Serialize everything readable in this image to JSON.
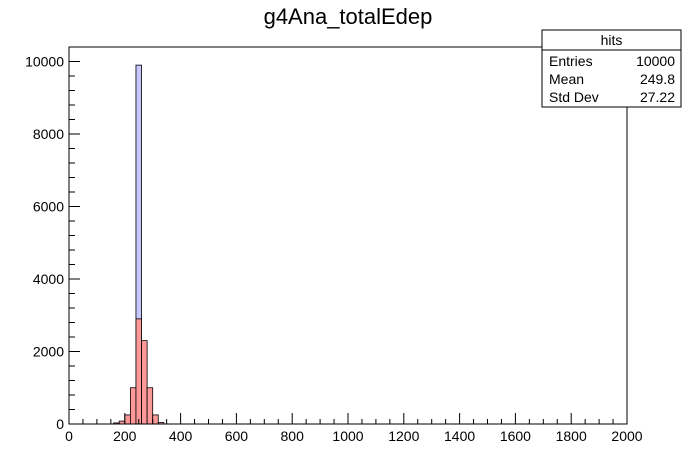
{
  "chart_data": {
    "type": "bar",
    "title": "g4Ana_totalEdep",
    "xlabel": "",
    "ylabel": "",
    "xlim": [
      0,
      2000
    ],
    "ylim": [
      0,
      10400
    ],
    "bin_width": 20,
    "x_ticks": [
      0,
      200,
      400,
      600,
      800,
      1000,
      1200,
      1400,
      1600,
      1800,
      2000
    ],
    "y_ticks": [
      0,
      2000,
      4000,
      6000,
      8000,
      10000
    ],
    "grid": false,
    "legend": "none",
    "series": [
      {
        "color": "#c8c8ff",
        "bins": [
          {
            "x0": 240,
            "x1": 260,
            "value": 9900
          }
        ]
      },
      {
        "color": "#ff9999",
        "bins": [
          {
            "x0": 160,
            "x1": 180,
            "value": 30
          },
          {
            "x0": 180,
            "x1": 200,
            "value": 80
          },
          {
            "x0": 200,
            "x1": 220,
            "value": 250
          },
          {
            "x0": 220,
            "x1": 240,
            "value": 1000
          },
          {
            "x0": 240,
            "x1": 260,
            "value": 2900
          },
          {
            "x0": 260,
            "x1": 280,
            "value": 2300
          },
          {
            "x0": 280,
            "x1": 300,
            "value": 1000
          },
          {
            "x0": 300,
            "x1": 320,
            "value": 250
          },
          {
            "x0": 320,
            "x1": 340,
            "value": 40
          }
        ]
      }
    ],
    "stats_box": {
      "title": "hits",
      "rows": [
        {
          "label": "Entries",
          "value": "10000"
        },
        {
          "label": "Mean",
          "value": "249.8"
        },
        {
          "label": "Std Dev",
          "value": "27.22"
        }
      ]
    }
  }
}
